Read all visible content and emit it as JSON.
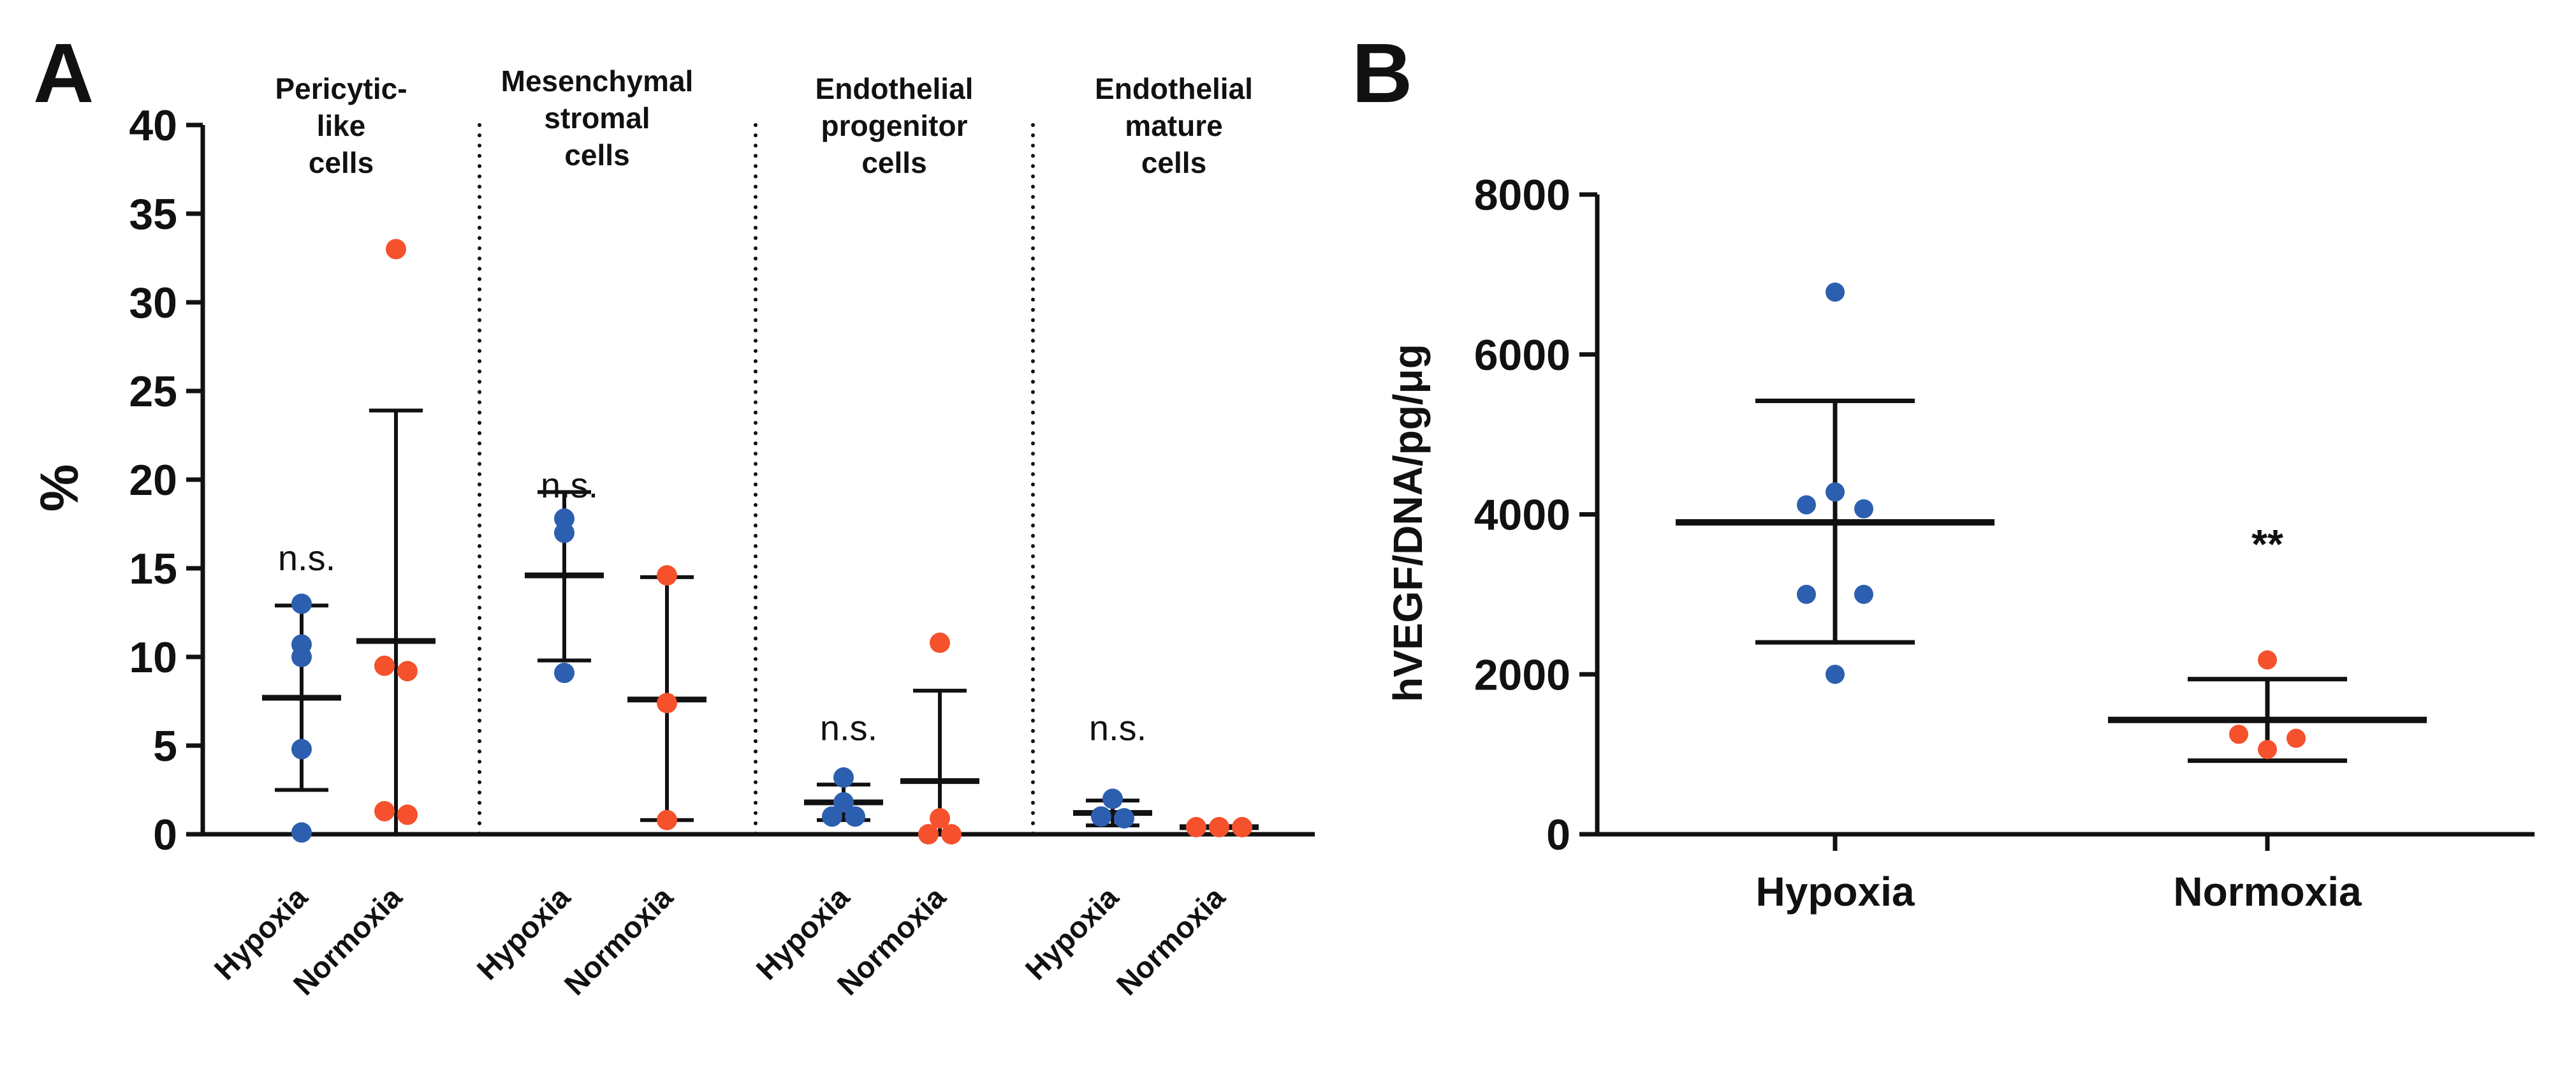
{
  "panels": {
    "a": {
      "label": "A"
    },
    "b": {
      "label": "B"
    }
  },
  "colors": {
    "hypoxia": "#2d5fb0",
    "normoxia": "#f5512c",
    "ink": "#111111"
  },
  "chart_data": [
    {
      "type": "scatter",
      "panel": "A",
      "ylabel": "%",
      "ylim": [
        0,
        40
      ],
      "yticks": [
        0,
        5,
        10,
        15,
        20,
        25,
        30,
        35,
        40
      ],
      "groups": [
        {
          "title": [
            "Pericytic-",
            "like",
            "cells"
          ],
          "annotation": "n.s.",
          "series": [
            {
              "name": "Hypoxia",
              "points": [
                13.0,
                10.7,
                10.0,
                4.8,
                0.1
              ],
              "mean": 7.7,
              "sd_low": 2.5,
              "sd_high": 12.9
            },
            {
              "name": "Normoxia",
              "points": [
                33.0,
                9.5,
                9.2,
                1.3,
                1.1
              ],
              "mean": 10.9,
              "sd_low": 0.0,
              "sd_high": 23.9
            }
          ]
        },
        {
          "title": [
            "Mesenchymal",
            "stromal",
            "cells"
          ],
          "annotation": "n.s.",
          "series": [
            {
              "name": "Hypoxia",
              "points": [
                17.8,
                17.0,
                9.1
              ],
              "mean": 14.6,
              "sd_low": 9.8,
              "sd_high": 19.3
            },
            {
              "name": "Normoxia",
              "points": [
                14.6,
                7.4,
                0.8
              ],
              "mean": 7.6,
              "sd_low": 0.8,
              "sd_high": 14.5
            }
          ]
        },
        {
          "title": [
            "Endothelial",
            "progenitor",
            "cells"
          ],
          "annotation": "n.s.",
          "series": [
            {
              "name": "Hypoxia",
              "points": [
                3.2,
                1.8,
                1.0,
                1.0
              ],
              "mean": 1.8,
              "sd_low": 0.8,
              "sd_high": 2.8
            },
            {
              "name": "Normoxia",
              "points": [
                10.8,
                0.9,
                0.0,
                0.0
              ],
              "mean": 3.0,
              "sd_low": 0.0,
              "sd_high": 8.1
            }
          ]
        },
        {
          "title": [
            "Endothelial",
            "mature",
            "cells"
          ],
          "annotation": "n.s.",
          "series": [
            {
              "name": "Hypoxia",
              "points": [
                2.0,
                1.0,
                0.9
              ],
              "mean": 1.2,
              "sd_low": 0.5,
              "sd_high": 1.9
            },
            {
              "name": "Normoxia",
              "points": [
                0.4,
                0.4,
                0.4
              ],
              "mean": 0.4,
              "sd_low": 0.4,
              "sd_high": 0.4
            }
          ]
        }
      ]
    },
    {
      "type": "scatter",
      "panel": "B",
      "ylabel": "hVEGF/DNA/pg/μg",
      "ylim": [
        0,
        8000
      ],
      "yticks": [
        0,
        2000,
        4000,
        6000,
        8000
      ],
      "categories": [
        "Hypoxia",
        "Normoxia"
      ],
      "series": [
        {
          "name": "Hypoxia",
          "points": [
            6780,
            4280,
            4120,
            4070,
            3000,
            3000,
            2000
          ],
          "mean": 3900,
          "sd_low": 2400,
          "sd_high": 5420
        },
        {
          "name": "Normoxia",
          "points": [
            2180,
            1250,
            1200,
            1060
          ],
          "mean": 1430,
          "sd_low": 920,
          "sd_high": 1940,
          "annotation": "**"
        }
      ]
    }
  ]
}
